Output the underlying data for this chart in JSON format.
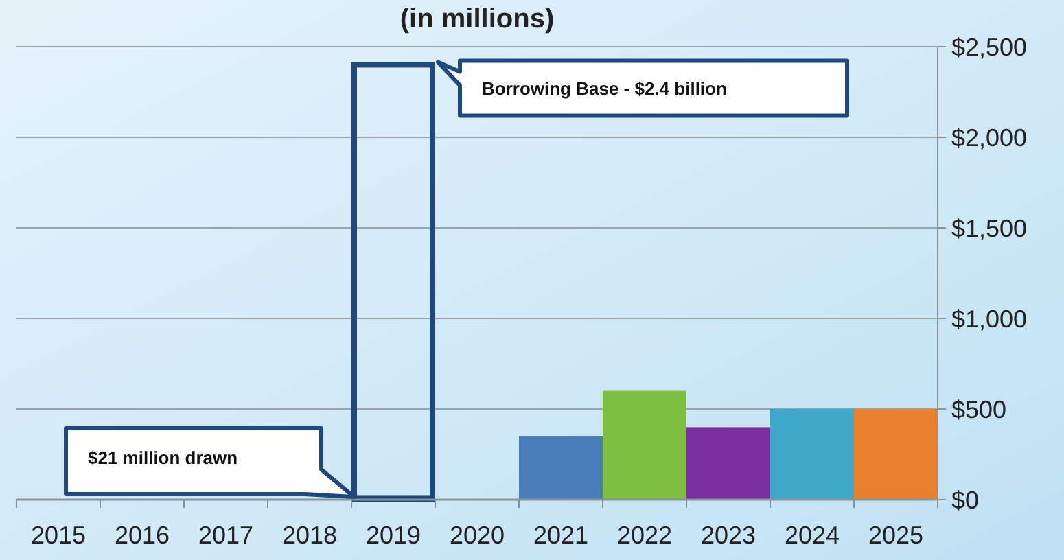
{
  "chart_data": {
    "type": "bar",
    "title": "(in millions)",
    "categories": [
      "2015",
      "2016",
      "2017",
      "2018",
      "2019",
      "2020",
      "2021",
      "2022",
      "2023",
      "2024",
      "2025"
    ],
    "series": [
      {
        "colors": [
          null,
          null,
          null,
          null,
          "#1f497d",
          null,
          "#4a7ebb",
          "#7fbf3f",
          "#7a2fa0",
          "#3fa9c9",
          "#e8802f"
        ],
        "values": [
          null,
          null,
          null,
          null,
          21,
          null,
          350,
          600,
          400,
          500,
          500
        ]
      },
      {
        "color": "#1f497d",
        "values": [
          null,
          null,
          null,
          null,
          2400,
          null,
          null,
          null,
          null,
          null,
          null
        ]
      }
    ],
    "ylim": [
      0,
      2500
    ],
    "yticks": [
      {
        "value": 0,
        "label": "$0"
      },
      {
        "value": 500,
        "label": "$500"
      },
      {
        "value": 1000,
        "label": "$1,000"
      },
      {
        "value": 1500,
        "label": "$1,500"
      },
      {
        "value": 2000,
        "label": "$2,000"
      },
      {
        "value": 2500,
        "label": "$2,500"
      }
    ],
    "grid": "y",
    "annotations": [
      "Borrowing Base - $2.4 billion",
      "$21 million drawn"
    ]
  }
}
